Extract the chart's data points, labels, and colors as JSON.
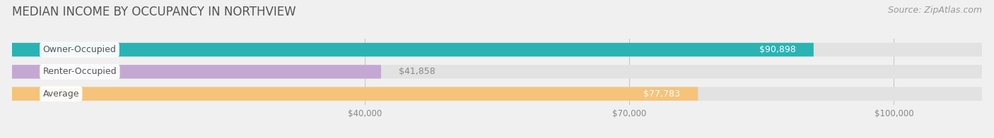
{
  "title": "MEDIAN INCOME BY OCCUPANCY IN NORTHVIEW",
  "source": "Source: ZipAtlas.com",
  "categories": [
    "Owner-Occupied",
    "Renter-Occupied",
    "Average"
  ],
  "values": [
    90898,
    41858,
    77783
  ],
  "bar_colors": [
    "#2ab3b3",
    "#c4a8d4",
    "#f5c37a"
  ],
  "bar_labels": [
    "$90,898",
    "$41,858",
    "$77,783"
  ],
  "label_inside": [
    true,
    false,
    true
  ],
  "xlim_max": 110000,
  "xticks": [
    40000,
    70000,
    100000
  ],
  "xtick_labels": [
    "$40,000",
    "$70,000",
    "$100,000"
  ],
  "background_color": "#f0f0f0",
  "bar_background_color": "#e2e2e2",
  "title_fontsize": 12,
  "source_fontsize": 9,
  "cat_fontsize": 9,
  "val_fontsize": 9,
  "bar_height": 0.62,
  "value_label_color_inside": "#ffffff",
  "value_label_color_outside": "#888888",
  "cat_label_color": "#555555"
}
